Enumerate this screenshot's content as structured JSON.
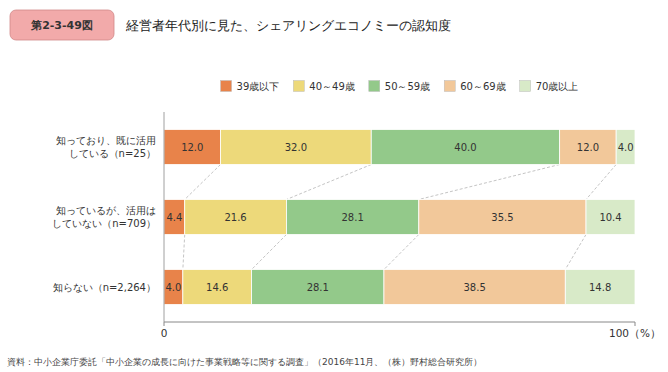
{
  "chart_data": {
    "type": "bar",
    "orientation": "horizontal",
    "stacked": true,
    "data_labels": true,
    "title": "経営者年代別に見た、シェアリングエコノミーの認知度",
    "annotations": [
      "第2-3-49図",
      "資料：中小企業庁委託「中小企業の成長に向けた事業戦略等に関する調査」（2016年11月、（株）野村総合研究所）"
    ],
    "categories": [
      "知っており、既に活用\nしている（n=25）",
      "知っているが、活用は\nしていない（n=709）",
      "知らない（n=2,264）"
    ],
    "series": [
      {
        "name": "39歳以下",
        "color": "#E8834A",
        "values": [
          12.0,
          4.4,
          4.0
        ],
        "value_labels": [
          "12.0",
          "4.4",
          "4.0"
        ]
      },
      {
        "name": "40～49歳",
        "color": "#EDD97A",
        "values": [
          32.0,
          21.6,
          14.6
        ],
        "value_labels": [
          "32.0",
          "21.6",
          "14.6"
        ]
      },
      {
        "name": "50～59歳",
        "color": "#93C98A",
        "values": [
          40.0,
          28.1,
          28.1
        ],
        "value_labels": [
          "40.0",
          "28.1",
          "28.1"
        ]
      },
      {
        "name": "60～69歳",
        "color": "#F2C89A",
        "values": [
          12.0,
          35.5,
          38.5
        ],
        "value_labels": [
          "12.0",
          "35.5",
          "38.5"
        ]
      },
      {
        "name": "70歳以上",
        "color": "#D8EAC8",
        "values": [
          4.0,
          10.4,
          14.8
        ],
        "value_labels": [
          "4.0",
          "10.4",
          "14.8"
        ]
      }
    ],
    "xlim": [
      0,
      100
    ],
    "xticks": [
      0,
      {
        "value": 100,
        "label": "100（%）"
      }
    ]
  }
}
